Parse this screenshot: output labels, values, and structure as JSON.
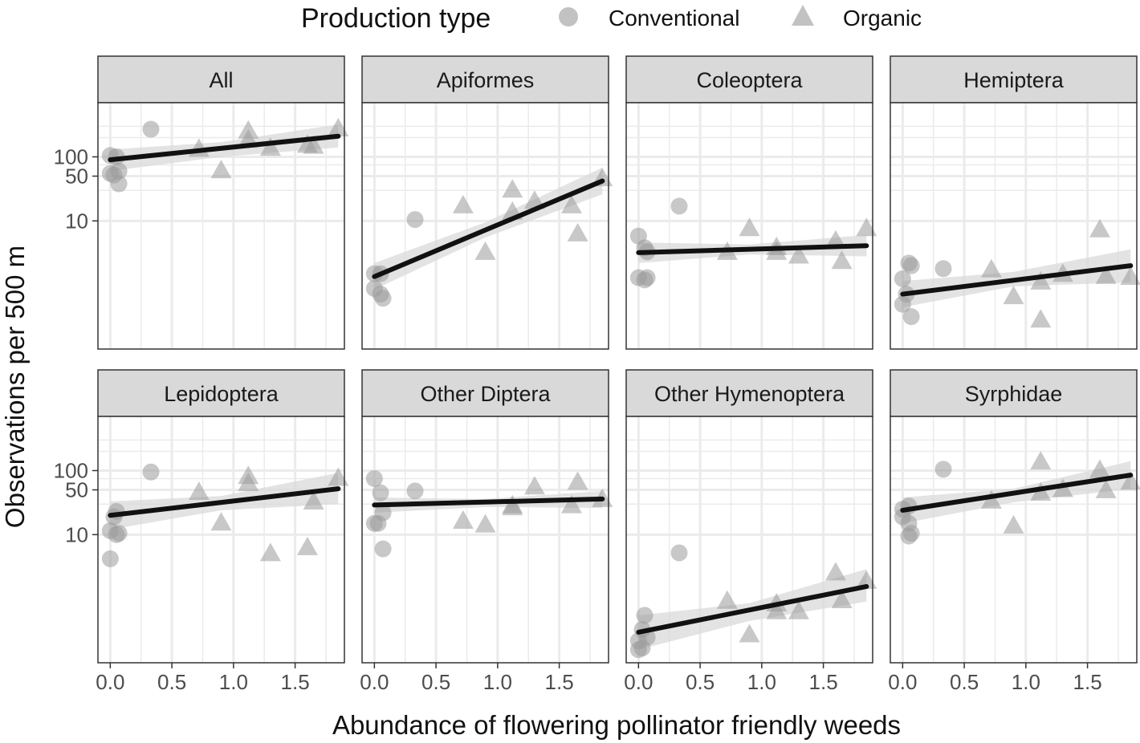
{
  "legend": {
    "title": "Production type",
    "items": [
      {
        "label": "Conventional",
        "shape": "circle"
      },
      {
        "label": "Organic",
        "shape": "triangle"
      }
    ]
  },
  "colors": {
    "point": "#9a9a9a",
    "fit_line": "#111111",
    "ribbon": "#d9d9d9",
    "strip_bg": "#d9d9d9",
    "grid": "#ebebeb",
    "panel_border": "#333333"
  },
  "chart_data": {
    "type": "scatter",
    "facet_layout": "2x4",
    "xlabel": "Abundance of flowering pollinator friendly weeds",
    "ylabel": "Observations per 500 m",
    "x_ticks": [
      0.0,
      0.5,
      1.0,
      1.5
    ],
    "x_tick_labels": [
      "0.0",
      "0.5",
      "1.0",
      "1.5"
    ],
    "xlim": [
      -0.1,
      1.9
    ],
    "y_scale": "log",
    "y_ticks": [
      10,
      50,
      100
    ],
    "y_tick_labels": [
      "10",
      "50",
      "100"
    ],
    "ylim": [
      0.1,
      700
    ],
    "grid": true,
    "legend_position": "top",
    "panels": [
      {
        "name": "All",
        "conventional": [
          [
            0.0,
            105
          ],
          [
            0.05,
            100
          ],
          [
            0.07,
            60
          ],
          [
            0.0,
            55
          ],
          [
            0.03,
            52
          ],
          [
            0.07,
            38
          ],
          [
            0.33,
            270
          ]
        ],
        "organic": [
          [
            0.72,
            130
          ],
          [
            0.9,
            60
          ],
          [
            1.12,
            250
          ],
          [
            1.12,
            180
          ],
          [
            1.3,
            135
          ],
          [
            1.6,
            150
          ],
          [
            1.65,
            145
          ],
          [
            1.85,
            270
          ]
        ],
        "fit": {
          "x0": 0.0,
          "y0": 90,
          "x1": 1.85,
          "y1": 210
        },
        "ci": [
          [
            0.0,
            60,
            130
          ],
          [
            0.9,
            100,
            170
          ],
          [
            1.85,
            140,
            320
          ]
        ]
      },
      {
        "name": "Apiformes",
        "conventional": [
          [
            0.0,
            1.5
          ],
          [
            0.05,
            1.5
          ],
          [
            0.0,
            0.88
          ],
          [
            0.05,
            0.72
          ],
          [
            0.07,
            0.62
          ],
          [
            0.33,
            10.5
          ]
        ],
        "organic": [
          [
            0.72,
            17
          ],
          [
            0.9,
            3.2
          ],
          [
            1.12,
            30
          ],
          [
            1.12,
            13.5
          ],
          [
            1.3,
            20
          ],
          [
            1.6,
            17
          ],
          [
            1.65,
            6.2
          ],
          [
            1.85,
            45
          ]
        ],
        "fit": {
          "x0": 0.0,
          "y0": 1.35,
          "x1": 1.85,
          "y1": 42
        },
        "ci": [
          [
            0.0,
            0.85,
            2.2
          ],
          [
            0.9,
            5.5,
            9.5
          ],
          [
            1.85,
            26,
            68
          ]
        ]
      },
      {
        "name": "Coleoptera",
        "conventional": [
          [
            0.0,
            5.8
          ],
          [
            0.05,
            3.8
          ],
          [
            0.07,
            3.3
          ],
          [
            0.0,
            1.3
          ],
          [
            0.05,
            1.2
          ],
          [
            0.07,
            1.3
          ],
          [
            0.33,
            17
          ]
        ],
        "organic": [
          [
            0.72,
            3.2
          ],
          [
            0.9,
            7.5
          ],
          [
            1.12,
            3.8
          ],
          [
            1.12,
            3.2
          ],
          [
            1.3,
            2.8
          ],
          [
            1.6,
            4.8
          ],
          [
            1.65,
            2.3
          ],
          [
            1.85,
            7.5
          ]
        ],
        "fit": {
          "x0": 0.0,
          "y0": 3.2,
          "x1": 1.85,
          "y1": 4.1
        },
        "ci": [
          [
            0.0,
            2.2,
            4.6
          ],
          [
            0.9,
            3.0,
            4.3
          ],
          [
            1.85,
            2.8,
            6.0
          ]
        ]
      },
      {
        "name": "Hemiptera",
        "conventional": [
          [
            0.05,
            2.2
          ],
          [
            0.07,
            2.0
          ],
          [
            0.0,
            1.25
          ],
          [
            0.03,
            0.72
          ],
          [
            0.0,
            0.5
          ],
          [
            0.07,
            0.32
          ],
          [
            0.33,
            1.8
          ]
        ],
        "organic": [
          [
            0.72,
            1.7
          ],
          [
            0.9,
            0.65
          ],
          [
            1.12,
            1.1
          ],
          [
            1.12,
            0.28
          ],
          [
            1.3,
            1.45
          ],
          [
            1.6,
            7.2
          ],
          [
            1.65,
            1.35
          ],
          [
            1.85,
            1.3
          ]
        ],
        "fit": {
          "x0": 0.0,
          "y0": 0.72,
          "x1": 1.85,
          "y1": 2.0
        },
        "ci": [
          [
            0.0,
            0.45,
            1.15
          ],
          [
            0.9,
            0.95,
            1.6
          ],
          [
            1.85,
            1.1,
            3.6
          ]
        ]
      },
      {
        "name": "Lepidoptera",
        "conventional": [
          [
            0.05,
            23
          ],
          [
            0.03,
            19
          ],
          [
            0.0,
            11.5
          ],
          [
            0.07,
            10.5
          ],
          [
            0.05,
            10
          ],
          [
            0.0,
            4.2
          ],
          [
            0.33,
            95
          ]
        ],
        "organic": [
          [
            0.72,
            45
          ],
          [
            0.9,
            15
          ],
          [
            1.12,
            80
          ],
          [
            1.12,
            62
          ],
          [
            1.3,
            5
          ],
          [
            1.6,
            6.2
          ],
          [
            1.65,
            32
          ],
          [
            1.85,
            75
          ]
        ],
        "fit": {
          "x0": 0.0,
          "y0": 20,
          "x1": 1.85,
          "y1": 52
        },
        "ci": [
          [
            0.0,
            12,
            33
          ],
          [
            0.9,
            24,
            40
          ],
          [
            1.85,
            30,
            92
          ]
        ]
      },
      {
        "name": "Other Diptera",
        "conventional": [
          [
            0.0,
            75
          ],
          [
            0.05,
            45
          ],
          [
            0.07,
            22
          ],
          [
            0.0,
            15
          ],
          [
            0.03,
            15
          ],
          [
            0.07,
            6
          ],
          [
            0.33,
            48
          ]
        ],
        "organic": [
          [
            0.72,
            16
          ],
          [
            0.9,
            14
          ],
          [
            1.12,
            26
          ],
          [
            1.12,
            28
          ],
          [
            1.3,
            55
          ],
          [
            1.6,
            28
          ],
          [
            1.65,
            65
          ],
          [
            1.85,
            35
          ]
        ],
        "fit": {
          "x0": 0.0,
          "y0": 29,
          "x1": 1.85,
          "y1": 36
        },
        "ci": [
          [
            0.0,
            22,
            38
          ],
          [
            0.9,
            27,
            36
          ],
          [
            1.85,
            26,
            48
          ]
        ]
      },
      {
        "name": "Other Hymenoptera",
        "conventional": [
          [
            0.05,
            0.55
          ],
          [
            0.03,
            0.33
          ],
          [
            0.07,
            0.25
          ],
          [
            0.0,
            0.22
          ],
          [
            0.03,
            0.17
          ],
          [
            0.0,
            0.16
          ],
          [
            0.33,
            5.2
          ]
        ],
        "organic": [
          [
            0.72,
            0.9
          ],
          [
            0.9,
            0.27
          ],
          [
            1.12,
            0.82
          ],
          [
            1.12,
            0.62
          ],
          [
            1.3,
            0.62
          ],
          [
            1.6,
            2.5
          ],
          [
            1.65,
            0.92
          ],
          [
            1.85,
            1.85
          ]
        ],
        "fit": {
          "x0": 0.0,
          "y0": 0.3,
          "x1": 1.85,
          "y1": 1.55
        },
        "ci": [
          [
            0.0,
            0.16,
            0.55
          ],
          [
            0.9,
            0.45,
            0.85
          ],
          [
            1.85,
            0.9,
            2.9
          ]
        ]
      },
      {
        "name": "Syrphidae",
        "conventional": [
          [
            0.05,
            28
          ],
          [
            0.0,
            25
          ],
          [
            0.0,
            19
          ],
          [
            0.05,
            15
          ],
          [
            0.07,
            10.5
          ],
          [
            0.05,
            9.5
          ],
          [
            0.33,
            105
          ]
        ],
        "organic": [
          [
            0.72,
            33
          ],
          [
            0.9,
            13.5
          ],
          [
            1.12,
            135
          ],
          [
            1.12,
            44
          ],
          [
            1.3,
            50
          ],
          [
            1.6,
            100
          ],
          [
            1.65,
            48
          ],
          [
            1.85,
            65
          ]
        ],
        "fit": {
          "x0": 0.0,
          "y0": 24,
          "x1": 1.85,
          "y1": 85
        },
        "ci": [
          [
            0.0,
            15,
            38
          ],
          [
            0.9,
            32,
            52
          ],
          [
            1.85,
            52,
            140
          ]
        ]
      }
    ]
  }
}
